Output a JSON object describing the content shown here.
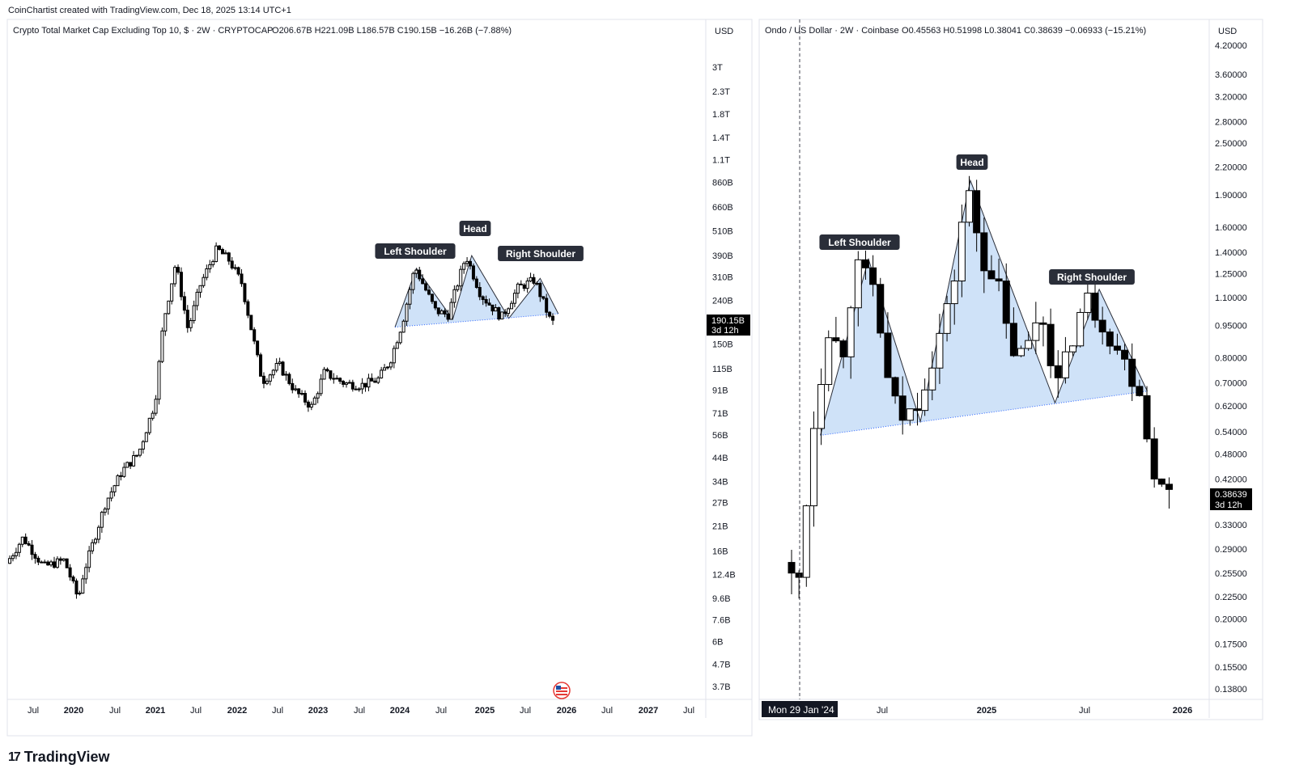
{
  "attribution": "CoinChartist created with TradingView.com, Dec 18, 2025 13:14 UTC+1",
  "brand": {
    "logo_mark": "17",
    "name": "TradingView"
  },
  "chart_data": [
    {
      "type": "candlestick",
      "title": "Crypto Total Market Cap Excluding Top 10, $ · 2W · CRYPTOCAP",
      "ohlc_readout": {
        "O": "206.67B",
        "H": "221.09B",
        "L": "186.57B",
        "C": "190.15B",
        "change": "−16.26B (−7.88%)"
      },
      "scale_currency": "USD",
      "scale": "log",
      "y_ticks": [
        "3T",
        "2.3T",
        "1.8T",
        "1.4T",
        "1.1T",
        "860B",
        "660B",
        "510B",
        "390B",
        "310B",
        "240B",
        "150B",
        "115B",
        "91B",
        "71B",
        "56B",
        "44B",
        "34B",
        "27B",
        "21B",
        "16B",
        "12.4B",
        "9.6B",
        "7.6B",
        "6B",
        "4.7B",
        "3.7B"
      ],
      "x_ticks": [
        "Jul",
        "2020",
        "Jul",
        "2021",
        "Jul",
        "2022",
        "Jul",
        "2023",
        "Jul",
        "2024",
        "Jul",
        "2025",
        "Jul",
        "2026",
        "Jul",
        "2027",
        "Jul"
      ],
      "last_price_label": {
        "value": "190.15B",
        "countdown": "3d 12h"
      },
      "pattern_labels": [
        "Left Shoulder",
        "Head",
        "Right Shoulder"
      ],
      "series_points": [
        [
          2019.25,
          14.0
        ],
        [
          2019.45,
          18.5
        ],
        [
          2019.7,
          13.5
        ],
        [
          2019.95,
          14.5
        ],
        [
          2020.12,
          9.5
        ],
        [
          2020.18,
          12.5
        ],
        [
          2020.45,
          27
        ],
        [
          2020.65,
          38
        ],
        [
          2020.85,
          46
        ],
        [
          2021.05,
          80
        ],
        [
          2021.15,
          190
        ],
        [
          2021.3,
          360
        ],
        [
          2021.45,
          175
        ],
        [
          2021.6,
          285
        ],
        [
          2021.8,
          420
        ],
        [
          2021.95,
          370
        ],
        [
          2022.1,
          290
        ],
        [
          2022.35,
          100
        ],
        [
          2022.55,
          120
        ],
        [
          2022.75,
          90
        ],
        [
          2022.95,
          76
        ],
        [
          2023.1,
          110
        ],
        [
          2023.35,
          98
        ],
        [
          2023.55,
          96
        ],
        [
          2023.75,
          102
        ],
        [
          2023.9,
          125
        ],
        [
          2024.05,
          190
        ],
        [
          2024.2,
          345
        ],
        [
          2024.45,
          215
        ],
        [
          2024.6,
          205
        ],
        [
          2024.82,
          390
        ],
        [
          2025.0,
          255
        ],
        [
          2025.25,
          200
        ],
        [
          2025.45,
          275
        ],
        [
          2025.65,
          300
        ],
        [
          2025.85,
          190
        ]
      ],
      "neckline": [
        [
          2023.92,
          180
        ],
        [
          2025.9,
          208
        ]
      ],
      "hs_outline": [
        [
          2023.92,
          180
        ],
        [
          2024.18,
          340
        ],
        [
          2024.62,
          196
        ],
        [
          2024.85,
          390
        ],
        [
          2025.3,
          198
        ],
        [
          2025.68,
          305
        ],
        [
          2025.9,
          208
        ]
      ]
    },
    {
      "type": "candlestick",
      "title": "Ondo / US Dollar · 2W · Coinbase",
      "ohlc_readout": {
        "O": "0.45563",
        "H": "0.51998",
        "L": "0.38041",
        "C": "0.38639",
        "change": "−0.06933 (−15.21%)"
      },
      "scale_currency": "USD",
      "scale": "log",
      "y_ticks": [
        "4.20000",
        "3.60000",
        "3.20000",
        "2.80000",
        "2.50000",
        "2.20000",
        "1.90000",
        "1.60000",
        "1.40000",
        "1.25000",
        "1.10000",
        "0.95000",
        "0.80000",
        "0.70000",
        "0.62000",
        "0.54000",
        "0.48000",
        "0.42000",
        "0.33000",
        "0.29000",
        "0.25500",
        "0.22500",
        "0.20000",
        "0.17500",
        "0.15500",
        "0.13800"
      ],
      "x_ticks": [
        "Jul",
        "2025",
        "Jul",
        "2026"
      ],
      "crosshair_date": "Mon 29 Jan '24",
      "last_price_label": {
        "value": "0.38639",
        "countdown": "3d 12h"
      },
      "pattern_labels": [
        "Left Shoulder",
        "Head",
        "Right Shoulder"
      ],
      "series_points": [
        [
          2024.05,
          0.27
        ],
        [
          2024.12,
          0.23
        ],
        [
          2024.2,
          0.55
        ],
        [
          2024.28,
          0.95
        ],
        [
          2024.35,
          0.8
        ],
        [
          2024.42,
          1.3
        ],
        [
          2024.52,
          1.15
        ],
        [
          2024.6,
          0.65
        ],
        [
          2024.68,
          0.57
        ],
        [
          2024.75,
          0.65
        ],
        [
          2024.82,
          0.8
        ],
        [
          2024.92,
          1.1
        ],
        [
          2025.0,
          2.0
        ],
        [
          2025.08,
          1.35
        ],
        [
          2025.15,
          1.25
        ],
        [
          2025.22,
          0.85
        ],
        [
          2025.3,
          0.8
        ],
        [
          2025.38,
          1.05
        ],
        [
          2025.48,
          0.68
        ],
        [
          2025.55,
          0.9
        ],
        [
          2025.62,
          1.1
        ],
        [
          2025.72,
          0.95
        ],
        [
          2025.82,
          0.78
        ],
        [
          2025.9,
          0.68
        ],
        [
          2025.95,
          0.48
        ],
        [
          2026.02,
          0.39
        ]
      ],
      "neckline": [
        [
          2024.2,
          0.53
        ],
        [
          2025.9,
          0.67
        ]
      ],
      "hs_outline": [
        [
          2024.2,
          0.53
        ],
        [
          2024.45,
          1.35
        ],
        [
          2024.72,
          0.57
        ],
        [
          2024.98,
          2.05
        ],
        [
          2025.42,
          0.63
        ],
        [
          2025.65,
          1.15
        ],
        [
          2025.9,
          0.67
        ]
      ]
    }
  ]
}
